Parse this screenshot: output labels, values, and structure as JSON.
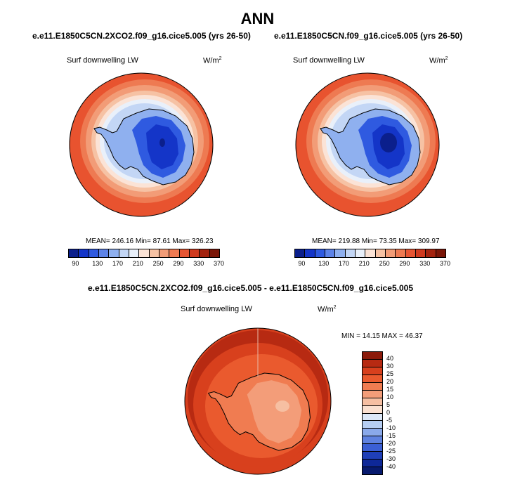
{
  "title": "ANN",
  "panels": [
    {
      "case": "e.e11.E1850C5CN.2XCO2.f09_g16.cice5.005 (yrs 26-50)",
      "variable": "Surf downwelling LW",
      "units": "W/m",
      "units_exp": "2",
      "stats": "MEAN= 246.16  Min=  87.61  Max= 326.23"
    },
    {
      "case": "e.e11.E1850C5CN.f09_g16.cice5.005 (yrs 26-50)",
      "variable": "Surf downwelling LW",
      "units": "W/m",
      "units_exp": "2",
      "stats": "MEAN= 219.88  Min=  73.35  Max= 309.97"
    }
  ],
  "diff": {
    "case": "e.e11.E1850C5CN.2XCO2.f09_g16.cice5.005 - e.e11.E1850C5CN.f09_g16.cice5.005",
    "variable": "Surf downwelling LW",
    "units": "W/m",
    "units_exp": "2",
    "stats": "MIN = 14.15 MAX =  46.37"
  },
  "abs_colorbar": {
    "ticks": [
      "90",
      "130",
      "170",
      "210",
      "250",
      "290",
      "330",
      "370"
    ],
    "colors": [
      "#0b1f8c",
      "#1435c8",
      "#2f5ae0",
      "#5d83e8",
      "#8fb0ef",
      "#c3d6f5",
      "#e9f0fa",
      "#fbe3d6",
      "#f6c2a4",
      "#f29c77",
      "#ee7a52",
      "#e65533",
      "#cf3a1f",
      "#a3230f",
      "#7a1608"
    ]
  },
  "diff_colorbar": {
    "ticks": [
      "40",
      "30",
      "25",
      "20",
      "15",
      "10",
      "5",
      "0",
      "-5",
      "-10",
      "-15",
      "-20",
      "-25",
      "-30",
      "-40"
    ],
    "colors": [
      "#8b1a0a",
      "#b72a12",
      "#d8401d",
      "#ea5a2e",
      "#f07c51",
      "#f39d79",
      "#f6bfa2",
      "#fae0d0",
      "#dce8f8",
      "#b5cdf2",
      "#8aa9ea",
      "#5f82e0",
      "#3b5fd4",
      "#1f3fb8",
      "#0e2898",
      "#071a6e"
    ]
  },
  "maps": {
    "abs_outer_color": "#e8532f",
    "abs_ring_colors": [
      "#ee7a52",
      "#f29c77",
      "#f6c2a4",
      "#fbe3d6",
      "#e9f0fa",
      "#c3d6f5"
    ],
    "abs_interior_colors": [
      "#8fb0ef",
      "#2f5ae0",
      "#1435c8",
      "#0b1f8c"
    ],
    "diff_colors": [
      "#b72a12",
      "#d8401d",
      "#ea5a2e",
      "#f07c51",
      "#f39d79",
      "#f6bfa2"
    ]
  }
}
